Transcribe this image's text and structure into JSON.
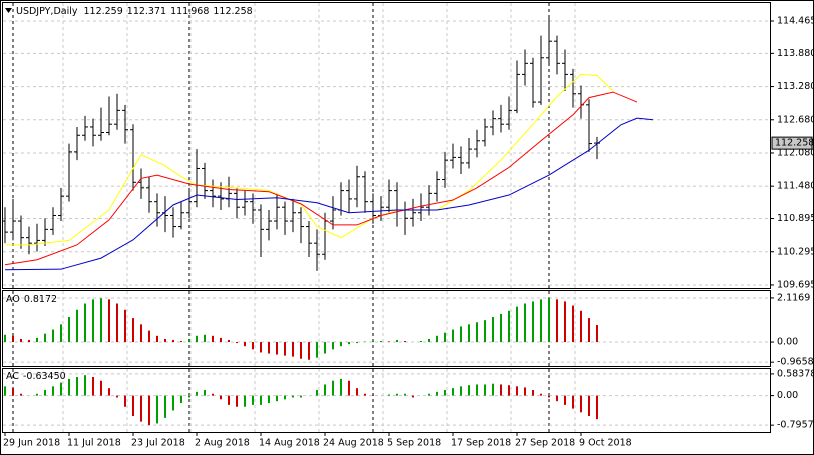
{
  "chart_data": [
    {
      "type": "ohlc",
      "title": "USDJPY,Daily",
      "color": "#000000",
      "grid": true,
      "ylim": [
        109.64,
        114.79
      ],
      "yticks": [
        114.465,
        {
          "value": 113.88,
          "label": "113.880"
        },
        {
          "value": 113.28,
          "label": "113.280"
        },
        {
          "value": 112.68,
          "label": "112.680"
        },
        {
          "value": 112.08,
          "label": "112.080"
        },
        {
          "value": 111.48,
          "label": "111.480"
        },
        110.895,
        110.295,
        109.695
      ],
      "categories": [
        "29 Jun 2018",
        null,
        null,
        null,
        null,
        null,
        null,
        null,
        "11 Jul 2018",
        null,
        null,
        null,
        null,
        null,
        null,
        null,
        "23 Jul 2018",
        null,
        null,
        null,
        null,
        null,
        null,
        null,
        "2 Aug 2018",
        null,
        null,
        null,
        null,
        null,
        null,
        null,
        "14 Aug 2018",
        null,
        null,
        null,
        null,
        null,
        null,
        null,
        "24 Aug 2018",
        null,
        null,
        null,
        null,
        null,
        null,
        null,
        "5 Sep 2018",
        null,
        null,
        null,
        null,
        null,
        null,
        null,
        "17 Sep 2018",
        null,
        null,
        null,
        null,
        null,
        null,
        null,
        "27 Sep 2018",
        null,
        null,
        null,
        null,
        null,
        null,
        null,
        "9 Oct 2018",
        null,
        null
      ],
      "open": [
        110.85,
        110.65,
        110.85,
        110.55,
        110.45,
        110.5,
        110.7,
        110.95,
        111.3,
        112.1,
        112.4,
        112.55,
        112.4,
        112.45,
        112.6,
        112.85,
        112.5,
        111.55,
        111.45,
        111.2,
        111.0,
        110.95,
        110.75,
        111.0,
        111.2,
        111.8,
        111.4,
        111.3,
        111.25,
        111.35,
        111.1,
        111.2,
        111.05,
        110.7,
        110.85,
        111.1,
        110.85,
        111.0,
        110.75,
        110.45,
        110.25,
        110.85,
        111.05,
        111.4,
        111.25,
        111.65,
        111.2,
        110.95,
        111.1,
        111.4,
        111.05,
        110.9,
        111.0,
        111.1,
        111.35,
        111.6,
        111.95,
        112.0,
        111.9,
        112.15,
        112.3,
        112.55,
        112.7,
        112.6,
        112.85,
        113.5,
        113.7,
        113.0,
        113.8,
        114.1,
        113.7,
        113.5,
        113.15,
        112.95,
        112.259
      ],
      "high": [
        111.1,
        111.25,
        110.95,
        110.75,
        110.8,
        110.9,
        111.1,
        111.45,
        112.25,
        112.55,
        112.75,
        112.7,
        112.9,
        113.1,
        113.15,
        112.95,
        112.6,
        111.8,
        111.65,
        111.35,
        111.3,
        111.1,
        111.2,
        111.45,
        112.15,
        111.9,
        111.6,
        111.55,
        111.65,
        111.45,
        111.4,
        111.35,
        111.15,
        111.05,
        111.35,
        111.2,
        111.25,
        111.1,
        110.85,
        110.7,
        111.0,
        111.3,
        111.55,
        111.6,
        111.85,
        111.75,
        111.35,
        111.3,
        111.6,
        111.55,
        111.2,
        111.25,
        111.35,
        111.5,
        111.75,
        112.1,
        112.25,
        112.2,
        112.35,
        112.5,
        112.7,
        112.85,
        112.95,
        113.1,
        113.75,
        113.95,
        113.8,
        114.2,
        114.55,
        114.2,
        113.95,
        113.6,
        113.3,
        113.05,
        112.371
      ],
      "low": [
        110.45,
        110.5,
        110.35,
        110.25,
        110.3,
        110.4,
        110.6,
        110.85,
        111.2,
        111.95,
        112.3,
        112.2,
        112.3,
        112.4,
        112.5,
        112.25,
        111.4,
        111.25,
        111.0,
        110.75,
        110.65,
        110.55,
        110.7,
        110.9,
        111.1,
        111.25,
        111.1,
        111.05,
        111.1,
        110.9,
        110.95,
        110.8,
        110.2,
        110.5,
        110.7,
        110.6,
        110.65,
        110.45,
        110.2,
        109.95,
        110.15,
        110.7,
        110.95,
        111.0,
        111.1,
        111.0,
        110.8,
        110.85,
        111.0,
        110.75,
        110.6,
        110.75,
        110.85,
        110.95,
        111.2,
        111.45,
        111.8,
        111.7,
        111.8,
        112.0,
        112.2,
        112.4,
        112.45,
        112.5,
        112.8,
        113.3,
        112.9,
        112.95,
        113.7,
        113.5,
        113.2,
        112.9,
        112.7,
        112.1,
        111.968
      ],
      "close": [
        110.65,
        110.85,
        110.55,
        110.45,
        110.5,
        110.7,
        110.95,
        111.3,
        112.1,
        112.4,
        112.55,
        112.4,
        112.45,
        112.6,
        112.85,
        112.5,
        111.55,
        111.45,
        111.2,
        111.0,
        110.95,
        110.75,
        111.0,
        111.2,
        111.8,
        111.4,
        111.3,
        111.25,
        111.35,
        111.1,
        111.2,
        111.05,
        110.7,
        110.85,
        111.1,
        110.85,
        111.0,
        110.75,
        110.45,
        110.25,
        110.85,
        111.05,
        111.4,
        111.25,
        111.65,
        111.2,
        110.95,
        111.1,
        111.4,
        111.05,
        110.9,
        111.0,
        111.1,
        111.35,
        111.6,
        111.95,
        112.0,
        111.9,
        112.15,
        112.3,
        112.55,
        112.7,
        112.6,
        112.85,
        113.5,
        113.7,
        113.0,
        113.8,
        114.1,
        113.7,
        113.5,
        113.15,
        112.95,
        112.25,
        112.258
      ],
      "lines": [
        {
          "color": "#ffff00",
          "x": [
            0,
            3,
            8,
            13,
            17,
            20,
            22,
            24,
            29,
            33,
            37,
            39,
            42,
            46,
            49,
            54,
            58,
            62,
            66,
            69,
            72,
            74,
            76
          ],
          "values": [
            110.42,
            110.42,
            110.5,
            111.05,
            112.05,
            111.85,
            111.65,
            111.5,
            111.45,
            111.4,
            111.15,
            110.75,
            110.55,
            110.9,
            111.05,
            111.05,
            111.4,
            111.95,
            112.6,
            113.1,
            113.5,
            113.48,
            113.2
          ]
        },
        {
          "color": "#ff0000",
          "x": [
            0,
            4,
            9,
            13,
            17,
            19,
            23,
            28,
            33,
            37,
            41,
            44,
            47,
            52,
            56,
            59,
            63,
            67,
            71,
            73,
            76,
            79
          ],
          "values": [
            110.06,
            110.15,
            110.42,
            110.87,
            111.62,
            111.68,
            111.52,
            111.42,
            111.38,
            111.16,
            110.78,
            110.78,
            110.95,
            111.12,
            111.23,
            111.45,
            111.82,
            112.3,
            112.77,
            113.08,
            113.18,
            113.0
          ]
        },
        {
          "color": "#0000c8",
          "x": [
            0,
            7,
            12,
            16,
            21,
            24,
            29,
            34,
            39,
            43,
            49,
            54,
            58,
            63,
            68,
            73,
            77,
            79,
            81
          ],
          "values": [
            109.97,
            109.98,
            110.18,
            110.51,
            111.14,
            111.32,
            111.24,
            111.27,
            111.18,
            111.0,
            111.05,
            111.05,
            111.14,
            111.32,
            111.68,
            112.13,
            112.59,
            112.71,
            112.68
          ]
        }
      ]
    },
    {
      "type": "bar",
      "title": "AO",
      "up_color": "#00a000",
      "down_color": "#d00000",
      "grid": true,
      "ylim": [
        -1.15,
        2.45
      ],
      "yticks": [
        2.1169,
        {
          "value": 0,
          "label": "0.00"
        },
        -0.9658
      ],
      "values": [
        0.35,
        0.3,
        0.15,
        0.1,
        0.2,
        0.4,
        0.6,
        0.85,
        1.2,
        1.55,
        1.85,
        2.05,
        2.1,
        2.05,
        1.85,
        1.55,
        1.15,
        0.85,
        0.55,
        0.3,
        0.15,
        0.1,
        0.05,
        0.15,
        0.3,
        0.35,
        0.3,
        0.2,
        0.1,
        -0.05,
        -0.2,
        -0.35,
        -0.5,
        -0.55,
        -0.6,
        -0.65,
        -0.7,
        -0.8,
        -0.85,
        -0.75,
        -0.55,
        -0.35,
        -0.2,
        -0.1,
        -0.05,
        0.02,
        0.05,
        0.05,
        0.03,
        0.1,
        0.05,
        0.0,
        0.05,
        0.15,
        0.3,
        0.45,
        0.6,
        0.75,
        0.85,
        0.95,
        1.05,
        1.2,
        1.35,
        1.5,
        1.7,
        1.85,
        1.95,
        2.05,
        2.1169,
        2.05,
        1.95,
        1.75,
        1.5,
        1.15,
        0.8172
      ]
    },
    {
      "type": "bar",
      "title": "AC",
      "up_color": "#00a000",
      "down_color": "#d00000",
      "grid": true,
      "ylim": [
        -0.98,
        0.716
      ],
      "yticks": [
        0.58378,
        {
          "value": 0,
          "label": "0.00"
        },
        -0.79574
      ],
      "current_value_label": "-0.63450",
      "values": [
        0.25,
        0.2,
        0.05,
        0.0,
        0.05,
        0.15,
        0.25,
        0.35,
        0.45,
        0.5,
        0.55,
        0.5,
        0.4,
        0.2,
        -0.05,
        -0.3,
        -0.55,
        -0.7,
        -0.79574,
        -0.75,
        -0.6,
        -0.4,
        -0.2,
        -0.05,
        0.1,
        0.15,
        0.05,
        -0.1,
        -0.25,
        -0.3,
        -0.3,
        -0.25,
        -0.25,
        -0.2,
        -0.15,
        -0.1,
        -0.05,
        -0.05,
        0.0,
        0.15,
        0.3,
        0.4,
        0.45,
        0.4,
        0.2,
        0.05,
        0.02,
        0.0,
        0.03,
        0.05,
        0.05,
        -0.05,
        0.0,
        0.05,
        0.1,
        0.15,
        0.2,
        0.25,
        0.28,
        0.3,
        0.3,
        0.32,
        0.3,
        0.28,
        0.25,
        0.22,
        0.15,
        0.05,
        -0.05,
        -0.15,
        -0.25,
        -0.35,
        -0.45,
        -0.55,
        -0.6345
      ]
    }
  ]
}
